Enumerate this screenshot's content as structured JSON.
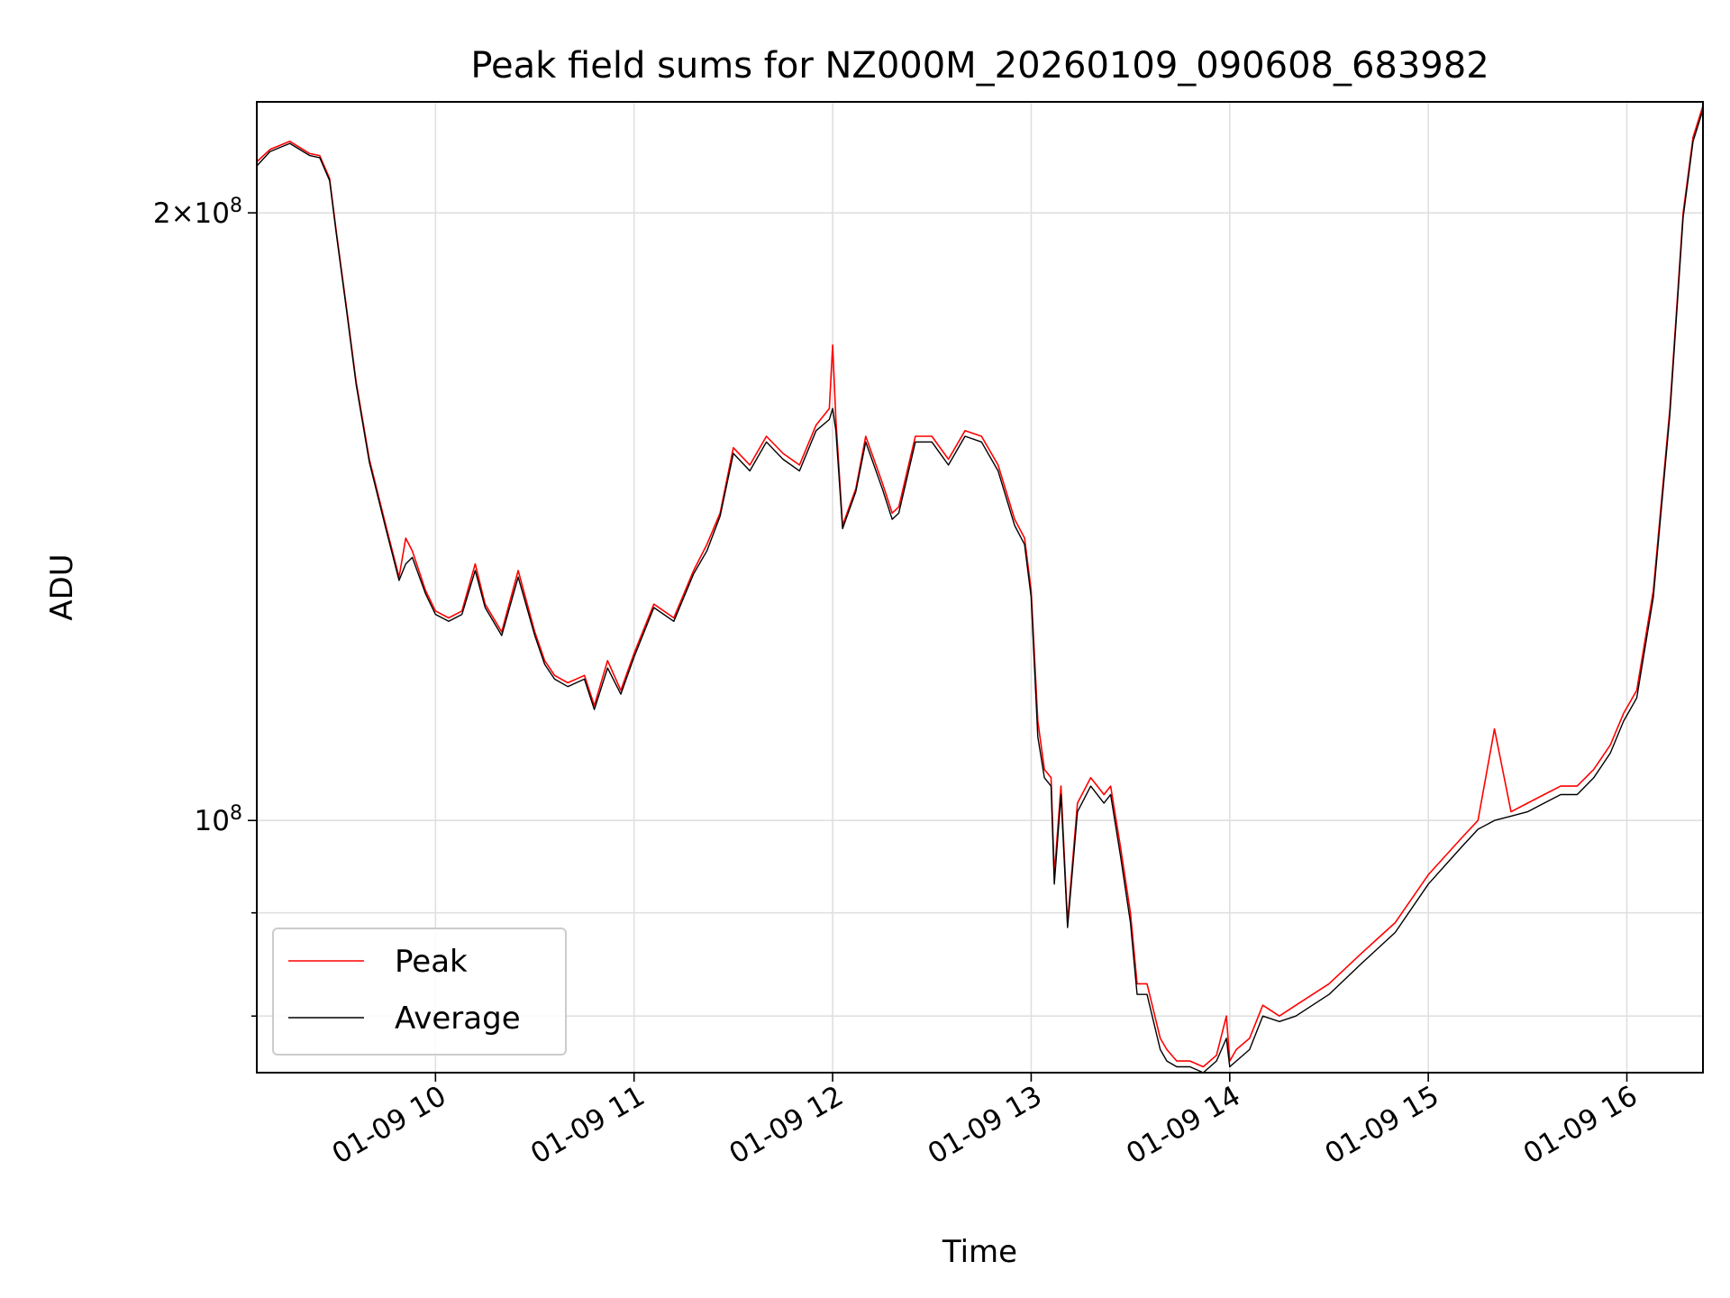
{
  "chart_data": {
    "type": "line",
    "title": "Peak field sums for NZ000M_20260109_090608_683982",
    "xlabel": "Time",
    "ylabel": "ADU",
    "yscale": "log",
    "grid": true,
    "legend_position": "lower-left",
    "xlim": [
      "2026-01-09 09:06",
      "2026-01-09 16:23"
    ],
    "ylim": [
      75000000,
      227000000
    ],
    "x_ticks": [
      {
        "value": "2026-01-09 10:00",
        "label": "01-09 10"
      },
      {
        "value": "2026-01-09 11:00",
        "label": "01-09 11"
      },
      {
        "value": "2026-01-09 12:00",
        "label": "01-09 12"
      },
      {
        "value": "2026-01-09 13:00",
        "label": "01-09 13"
      },
      {
        "value": "2026-01-09 14:00",
        "label": "01-09 14"
      },
      {
        "value": "2026-01-09 15:00",
        "label": "01-09 15"
      },
      {
        "value": "2026-01-09 16:00",
        "label": "01-09 16"
      }
    ],
    "y_major_ticks": [
      {
        "value": 100000000,
        "mantissa": "",
        "exponent": "8"
      },
      {
        "value": 200000000,
        "mantissa": "2×",
        "exponent": "8"
      }
    ],
    "y_minor_ticks": [
      80000000,
      90000000
    ],
    "tick_base": "10",
    "series": [
      {
        "name": "Peak",
        "color": "#ff0000",
        "x": [
          "2026-01-09 09:06",
          "2026-01-09 09:10",
          "2026-01-09 09:16",
          "2026-01-09 09:22",
          "2026-01-09 09:25",
          "2026-01-09 09:28",
          "2026-01-09 09:30",
          "2026-01-09 09:33",
          "2026-01-09 09:36",
          "2026-01-09 09:40",
          "2026-01-09 09:45",
          "2026-01-09 09:49",
          "2026-01-09 09:51",
          "2026-01-09 09:53",
          "2026-01-09 09:57",
          "2026-01-09 10:00",
          "2026-01-09 10:04",
          "2026-01-09 10:08",
          "2026-01-09 10:12",
          "2026-01-09 10:15",
          "2026-01-09 10:20",
          "2026-01-09 10:25",
          "2026-01-09 10:30",
          "2026-01-09 10:33",
          "2026-01-09 10:36",
          "2026-01-09 10:40",
          "2026-01-09 10:45",
          "2026-01-09 10:48",
          "2026-01-09 10:52",
          "2026-01-09 10:56",
          "2026-01-09 11:00",
          "2026-01-09 11:06",
          "2026-01-09 11:12",
          "2026-01-09 11:18",
          "2026-01-09 11:22",
          "2026-01-09 11:26",
          "2026-01-09 11:30",
          "2026-01-09 11:35",
          "2026-01-09 11:40",
          "2026-01-09 11:45",
          "2026-01-09 11:50",
          "2026-01-09 11:55",
          "2026-01-09 11:59",
          "2026-01-09 12:00",
          "2026-01-09 12:01",
          "2026-01-09 12:03",
          "2026-01-09 12:07",
          "2026-01-09 12:10",
          "2026-01-09 12:15",
          "2026-01-09 12:18",
          "2026-01-09 12:20",
          "2026-01-09 12:25",
          "2026-01-09 12:30",
          "2026-01-09 12:35",
          "2026-01-09 12:40",
          "2026-01-09 12:45",
          "2026-01-09 12:50",
          "2026-01-09 12:55",
          "2026-01-09 12:58",
          "2026-01-09 13:00",
          "2026-01-09 13:02",
          "2026-01-09 13:04",
          "2026-01-09 13:06",
          "2026-01-09 13:07",
          "2026-01-09 13:09",
          "2026-01-09 13:11",
          "2026-01-09 13:14",
          "2026-01-09 13:18",
          "2026-01-09 13:22",
          "2026-01-09 13:24",
          "2026-01-09 13:27",
          "2026-01-09 13:30",
          "2026-01-09 13:32",
          "2026-01-09 13:35",
          "2026-01-09 13:39",
          "2026-01-09 13:41",
          "2026-01-09 13:44",
          "2026-01-09 13:48",
          "2026-01-09 13:52",
          "2026-01-09 13:56",
          "2026-01-09 13:59",
          "2026-01-09 14:00",
          "2026-01-09 14:02",
          "2026-01-09 14:06",
          "2026-01-09 14:10",
          "2026-01-09 14:15",
          "2026-01-09 14:20",
          "2026-01-09 14:30",
          "2026-01-09 14:40",
          "2026-01-09 14:50",
          "2026-01-09 15:00",
          "2026-01-09 15:10",
          "2026-01-09 15:15",
          "2026-01-09 15:20",
          "2026-01-09 15:25",
          "2026-01-09 15:30",
          "2026-01-09 15:35",
          "2026-01-09 15:40",
          "2026-01-09 15:45",
          "2026-01-09 15:50",
          "2026-01-09 15:55",
          "2026-01-09 15:59",
          "2026-01-09 16:03",
          "2026-01-09 16:08",
          "2026-01-09 16:13",
          "2026-01-09 16:17",
          "2026-01-09 16:20",
          "2026-01-09 16:23"
        ],
        "values": [
          212000000,
          215000000,
          217000000,
          214000000,
          213500000,
          208000000,
          196000000,
          180000000,
          165000000,
          151000000,
          140000000,
          132000000,
          138000000,
          136000000,
          130000000,
          127000000,
          126000000,
          127000000,
          134000000,
          128000000,
          124000000,
          133000000,
          124000000,
          120000000,
          118000000,
          117000000,
          118000000,
          114000000,
          120000000,
          116000000,
          121000000,
          128000000,
          126000000,
          133000000,
          137000000,
          142000000,
          153000000,
          150000000,
          155000000,
          152000000,
          150000000,
          157000000,
          160000000,
          172000000,
          158000000,
          140000000,
          146000000,
          155000000,
          147000000,
          142000000,
          143000000,
          155000000,
          155000000,
          151000000,
          156000000,
          155000000,
          150000000,
          141000000,
          138000000,
          130000000,
          112000000,
          106000000,
          105000000,
          94000000,
          104000000,
          89000000,
          102000000,
          105000000,
          103000000,
          104000000,
          97000000,
          90000000,
          83000000,
          83000000,
          78000000,
          77000000,
          76000000,
          76000000,
          75500000,
          76500000,
          80000000,
          76000000,
          77000000,
          78000000,
          81000000,
          80000000,
          81000000,
          83000000,
          86000000,
          89000000,
          94000000,
          98000000,
          100000000,
          111000000,
          101000000,
          102000000,
          103000000,
          104000000,
          104000000,
          106000000,
          109000000,
          113000000,
          116000000,
          130000000,
          160000000,
          200000000,
          218000000,
          226000000
        ]
      },
      {
        "name": "Average",
        "color": "#000000",
        "x": [
          "2026-01-09 09:06",
          "2026-01-09 09:10",
          "2026-01-09 09:16",
          "2026-01-09 09:22",
          "2026-01-09 09:25",
          "2026-01-09 09:28",
          "2026-01-09 09:30",
          "2026-01-09 09:33",
          "2026-01-09 09:36",
          "2026-01-09 09:40",
          "2026-01-09 09:45",
          "2026-01-09 09:49",
          "2026-01-09 09:51",
          "2026-01-09 09:53",
          "2026-01-09 09:57",
          "2026-01-09 10:00",
          "2026-01-09 10:04",
          "2026-01-09 10:08",
          "2026-01-09 10:12",
          "2026-01-09 10:15",
          "2026-01-09 10:20",
          "2026-01-09 10:25",
          "2026-01-09 10:30",
          "2026-01-09 10:33",
          "2026-01-09 10:36",
          "2026-01-09 10:40",
          "2026-01-09 10:45",
          "2026-01-09 10:48",
          "2026-01-09 10:52",
          "2026-01-09 10:56",
          "2026-01-09 11:00",
          "2026-01-09 11:06",
          "2026-01-09 11:12",
          "2026-01-09 11:18",
          "2026-01-09 11:22",
          "2026-01-09 11:26",
          "2026-01-09 11:30",
          "2026-01-09 11:35",
          "2026-01-09 11:40",
          "2026-01-09 11:45",
          "2026-01-09 11:50",
          "2026-01-09 11:55",
          "2026-01-09 11:59",
          "2026-01-09 12:00",
          "2026-01-09 12:01",
          "2026-01-09 12:03",
          "2026-01-09 12:07",
          "2026-01-09 12:10",
          "2026-01-09 12:15",
          "2026-01-09 12:18",
          "2026-01-09 12:20",
          "2026-01-09 12:25",
          "2026-01-09 12:30",
          "2026-01-09 12:35",
          "2026-01-09 12:40",
          "2026-01-09 12:45",
          "2026-01-09 12:50",
          "2026-01-09 12:55",
          "2026-01-09 12:58",
          "2026-01-09 13:00",
          "2026-01-09 13:02",
          "2026-01-09 13:04",
          "2026-01-09 13:06",
          "2026-01-09 13:07",
          "2026-01-09 13:09",
          "2026-01-09 13:11",
          "2026-01-09 13:14",
          "2026-01-09 13:18",
          "2026-01-09 13:22",
          "2026-01-09 13:24",
          "2026-01-09 13:27",
          "2026-01-09 13:30",
          "2026-01-09 13:32",
          "2026-01-09 13:35",
          "2026-01-09 13:39",
          "2026-01-09 13:41",
          "2026-01-09 13:44",
          "2026-01-09 13:48",
          "2026-01-09 13:52",
          "2026-01-09 13:56",
          "2026-01-09 13:59",
          "2026-01-09 14:00",
          "2026-01-09 14:02",
          "2026-01-09 14:06",
          "2026-01-09 14:10",
          "2026-01-09 14:15",
          "2026-01-09 14:20",
          "2026-01-09 14:30",
          "2026-01-09 14:40",
          "2026-01-09 14:50",
          "2026-01-09 15:00",
          "2026-01-09 15:10",
          "2026-01-09 15:15",
          "2026-01-09 15:20",
          "2026-01-09 15:25",
          "2026-01-09 15:30",
          "2026-01-09 15:35",
          "2026-01-09 15:40",
          "2026-01-09 15:45",
          "2026-01-09 15:50",
          "2026-01-09 15:55",
          "2026-01-09 15:59",
          "2026-01-09 16:03",
          "2026-01-09 16:08",
          "2026-01-09 16:13",
          "2026-01-09 16:17",
          "2026-01-09 16:20",
          "2026-01-09 16:23"
        ],
        "values": [
          211000000,
          214500000,
          216500000,
          213500000,
          213000000,
          207500000,
          195500000,
          179500000,
          164500000,
          150500000,
          139500000,
          131500000,
          134000000,
          135000000,
          129500000,
          126500000,
          125500000,
          126500000,
          133000000,
          127500000,
          123500000,
          132000000,
          123500000,
          119500000,
          117500000,
          116500000,
          117500000,
          113500000,
          119000000,
          115500000,
          120500000,
          127500000,
          125500000,
          132500000,
          136000000,
          141500000,
          152000000,
          149000000,
          154000000,
          151000000,
          149000000,
          156000000,
          158000000,
          160000000,
          156000000,
          139500000,
          145500000,
          154000000,
          146000000,
          141000000,
          142000000,
          154000000,
          154000000,
          150000000,
          155000000,
          154000000,
          149000000,
          140000000,
          137000000,
          129000000,
          110000000,
          105000000,
          104000000,
          93000000,
          103000000,
          88500000,
          101000000,
          104000000,
          102000000,
          103000000,
          96000000,
          89000000,
          82000000,
          82000000,
          77000000,
          76000000,
          75500000,
          75500000,
          75000000,
          76000000,
          78000000,
          75500000,
          76000000,
          77000000,
          80000000,
          79500000,
          80000000,
          82000000,
          85000000,
          88000000,
          93000000,
          97000000,
          99000000,
          100000000,
          100500000,
          101000000,
          102000000,
          103000000,
          103000000,
          105000000,
          108000000,
          112000000,
          115000000,
          129000000,
          159000000,
          199000000,
          217000000,
          225000000
        ]
      }
    ]
  }
}
